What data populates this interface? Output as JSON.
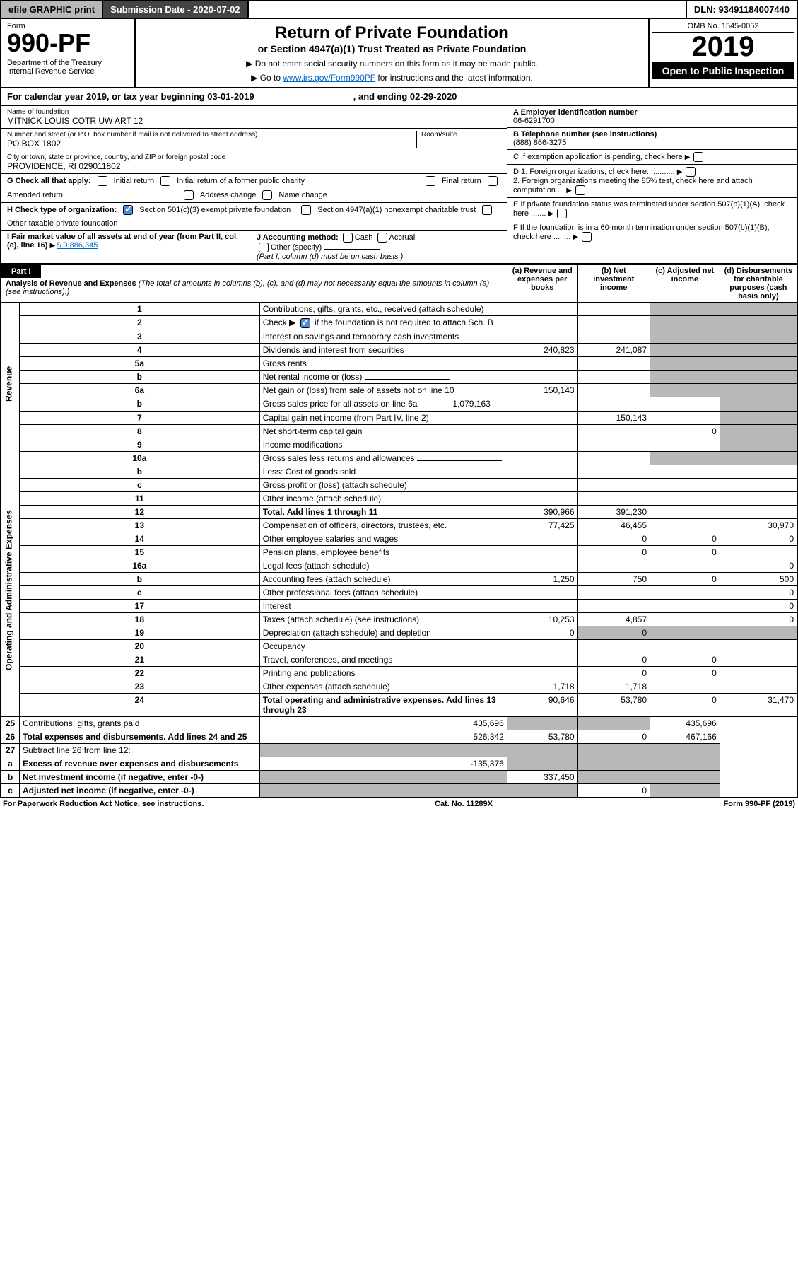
{
  "top": {
    "efile": "efile GRAPHIC print",
    "sub": "Submission Date - 2020-07-02",
    "dln": "DLN: 93491184007440"
  },
  "hdr": {
    "form": "Form",
    "num": "990-PF",
    "dept": "Department of the Treasury",
    "irs": "Internal Revenue Service",
    "title": "Return of Private Foundation",
    "sub": "or Section 4947(a)(1) Trust Treated as Private Foundation",
    "note1": "▶ Do not enter social security numbers on this form as it may be made public.",
    "note2": "▶ Go to ",
    "link": "www.irs.gov/Form990PF",
    "note3": " for instructions and the latest information.",
    "omb": "OMB No. 1545-0052",
    "yr": "2019",
    "open": "Open to Public Inspection"
  },
  "cal": {
    "pre": "For calendar year 2019, or tax year beginning ",
    "b": "03-01-2019",
    "mid": ", and ending ",
    "e": "02-29-2020"
  },
  "nf": {
    "lbl": "Name of foundation",
    "val": "MITNICK LOUIS COTR UW ART 12"
  },
  "addr": {
    "lbl": "Number and street (or P.O. box number if mail is not delivered to street address)",
    "val": "PO BOX 1802",
    "room": "Room/suite"
  },
  "city": {
    "lbl": "City or town, state or province, country, and ZIP or foreign postal code",
    "val": "PROVIDENCE, RI  029011802"
  },
  "a": {
    "lbl": "A Employer identification number",
    "val": "06-6291700"
  },
  "b": {
    "lbl": "B Telephone number (see instructions)",
    "val": "(888) 866-3275"
  },
  "c": "C If exemption application is pending, check here",
  "d1": "D 1. Foreign organizations, check here.............",
  "d2": "2. Foreign organizations meeting the 85% test, check here and attach computation ...",
  "e": "E  If private foundation status was terminated under section 507(b)(1)(A), check here .......",
  "f": "F  If the foundation is in a 60-month termination under section 507(b)(1)(B), check here ........",
  "g": {
    "lbl": "G Check all that apply:",
    "o": [
      "Initial return",
      "Initial return of a former public charity",
      "Final return",
      "Amended return",
      "Address change",
      "Name change"
    ]
  },
  "h": {
    "lbl": "H Check type of organization:",
    "o1": "Section 501(c)(3) exempt private foundation",
    "o2": "Section 4947(a)(1) nonexempt charitable trust",
    "o3": "Other taxable private foundation"
  },
  "i": {
    "lbl": "I Fair market value of all assets at end of year (from Part II, col. (c), line 16)",
    "amt": "$  9,886,345"
  },
  "j": {
    "lbl": "J Accounting method:",
    "o": [
      "Cash",
      "Accrual",
      "Other (specify)"
    ],
    "note": "(Part I, column (d) must be on cash basis.)"
  },
  "p1": {
    "part": "Part I",
    "title": "Analysis of Revenue and Expenses",
    "note": "(The total of amounts in columns (b), (c), and (d) may not necessarily equal the amounts in column (a) (see instructions).)",
    "cols": [
      "(a)   Revenue and expenses per books",
      "(b)   Net investment income",
      "(c)   Adjusted net income",
      "(d)  Disbursements for charitable purposes (cash basis only)"
    ]
  },
  "rows": [
    {
      "n": "1",
      "d": "Contributions, gifts, grants, etc., received (attach schedule)"
    },
    {
      "n": "2",
      "d": "Check ▶",
      "d2": " if the foundation is not required to attach Sch. B",
      "chk": true
    },
    {
      "n": "3",
      "d": "Interest on savings and temporary cash investments"
    },
    {
      "n": "4",
      "d": "Dividends and interest from securities",
      "a": "240,823",
      "b": "241,087"
    },
    {
      "n": "5a",
      "d": "Gross rents"
    },
    {
      "n": "b",
      "d": "Net rental income or (loss)",
      "blank": true
    },
    {
      "n": "6a",
      "d": "Net gain or (loss) from sale of assets not on line 10",
      "a": "150,143"
    },
    {
      "n": "b",
      "d": "Gross sales price for all assets on line 6a",
      "inline": "1,079,163"
    },
    {
      "n": "7",
      "d": "Capital gain net income (from Part IV, line 2)",
      "b": "150,143"
    },
    {
      "n": "8",
      "d": "Net short-term capital gain",
      "c": "0"
    },
    {
      "n": "9",
      "d": "Income modifications"
    },
    {
      "n": "10a",
      "d": "Gross sales less returns and allowances",
      "blank": true
    },
    {
      "n": "b",
      "d": "Less: Cost of goods sold",
      "blank": true
    },
    {
      "n": "c",
      "d": "Gross profit or (loss) (attach schedule)"
    },
    {
      "n": "11",
      "d": "Other income (attach schedule)"
    },
    {
      "n": "12",
      "d": "Total. Add lines 1 through 11",
      "bold": true,
      "a": "390,966",
      "b": "391,230"
    },
    {
      "n": "13",
      "d": "Compensation of officers, directors, trustees, etc.",
      "a": "77,425",
      "b": "46,455",
      "dd": "30,970"
    },
    {
      "n": "14",
      "d": "Other employee salaries and wages",
      "b": "0",
      "c": "0",
      "dd": "0"
    },
    {
      "n": "15",
      "d": "Pension plans, employee benefits",
      "b": "0",
      "c": "0"
    },
    {
      "n": "16a",
      "d": "Legal fees (attach schedule)",
      "dd": "0"
    },
    {
      "n": "b",
      "d": "Accounting fees (attach schedule)",
      "a": "1,250",
      "b": "750",
      "c": "0",
      "dd": "500"
    },
    {
      "n": "c",
      "d": "Other professional fees (attach schedule)",
      "dd": "0"
    },
    {
      "n": "17",
      "d": "Interest",
      "dd": "0"
    },
    {
      "n": "18",
      "d": "Taxes (attach schedule) (see instructions)",
      "a": "10,253",
      "b": "4,857",
      "dd": "0"
    },
    {
      "n": "19",
      "d": "Depreciation (attach schedule) and depletion",
      "a": "0",
      "b": "0"
    },
    {
      "n": "20",
      "d": "Occupancy"
    },
    {
      "n": "21",
      "d": "Travel, conferences, and meetings",
      "b": "0",
      "c": "0"
    },
    {
      "n": "22",
      "d": "Printing and publications",
      "b": "0",
      "c": "0"
    },
    {
      "n": "23",
      "d": "Other expenses (attach schedule)",
      "a": "1,718",
      "b": "1,718"
    },
    {
      "n": "24",
      "d": "Total operating and administrative expenses. Add lines 13 through 23",
      "bold": true,
      "a": "90,646",
      "b": "53,780",
      "c": "0",
      "dd": "31,470"
    },
    {
      "n": "25",
      "d": "Contributions, gifts, grants paid",
      "a": "435,696",
      "dd": "435,696"
    },
    {
      "n": "26",
      "d": "Total expenses and disbursements. Add lines 24 and 25",
      "bold": true,
      "a": "526,342",
      "b": "53,780",
      "c": "0",
      "dd": "467,166"
    },
    {
      "n": "27",
      "d": "Subtract line 26 from line 12:"
    },
    {
      "n": "a",
      "d": "Excess of revenue over expenses and disbursements",
      "bold": true,
      "a": "-135,376"
    },
    {
      "n": "b",
      "d": "Net investment income (if negative, enter -0-)",
      "bold": true,
      "b": "337,450"
    },
    {
      "n": "c",
      "d": "Adjusted net income (if negative, enter -0-)",
      "bold": true,
      "c": "0"
    }
  ],
  "sides": {
    "rev": "Revenue",
    "exp": "Operating and Administrative Expenses"
  },
  "ft": {
    "l": "For Paperwork Reduction Act Notice, see instructions.",
    "c": "Cat. No. 11289X",
    "r": "Form 990-PF (2019)"
  }
}
